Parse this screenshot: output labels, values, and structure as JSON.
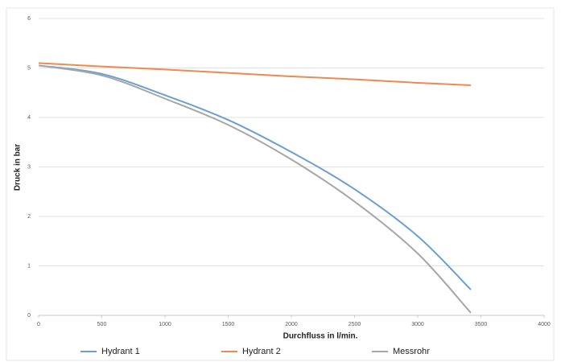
{
  "chart_data": {
    "type": "line",
    "x_label": "Durchfluss in l/min.",
    "y_label": "Druck in bar",
    "x": [
      0,
      500,
      1000,
      1500,
      2000,
      2500,
      3000,
      3420
    ],
    "series": [
      {
        "name": "Hydrant 1",
        "color": "#6a9fd4",
        "values": [
          5.05,
          4.88,
          4.45,
          3.95,
          3.3,
          2.55,
          1.6,
          0.52
        ]
      },
      {
        "name": "Hydrant 2",
        "color": "#ed8a4f",
        "values": [
          5.1,
          5.03,
          4.97,
          4.9,
          4.83,
          4.77,
          4.7,
          4.65
        ]
      },
      {
        "name": "Messrohr",
        "color": "#a6a6a6",
        "values": [
          5.05,
          4.85,
          4.38,
          3.85,
          3.15,
          2.3,
          1.25,
          0.05
        ]
      }
    ],
    "xlim": [
      0,
      4000
    ],
    "xticks": [
      0,
      500,
      1000,
      1500,
      2000,
      2500,
      3000,
      3500,
      4000
    ],
    "ylim": [
      0,
      6
    ],
    "yticks": [
      0,
      1,
      2,
      3,
      4,
      5,
      6
    ],
    "grid": true,
    "legend": "bottom"
  }
}
